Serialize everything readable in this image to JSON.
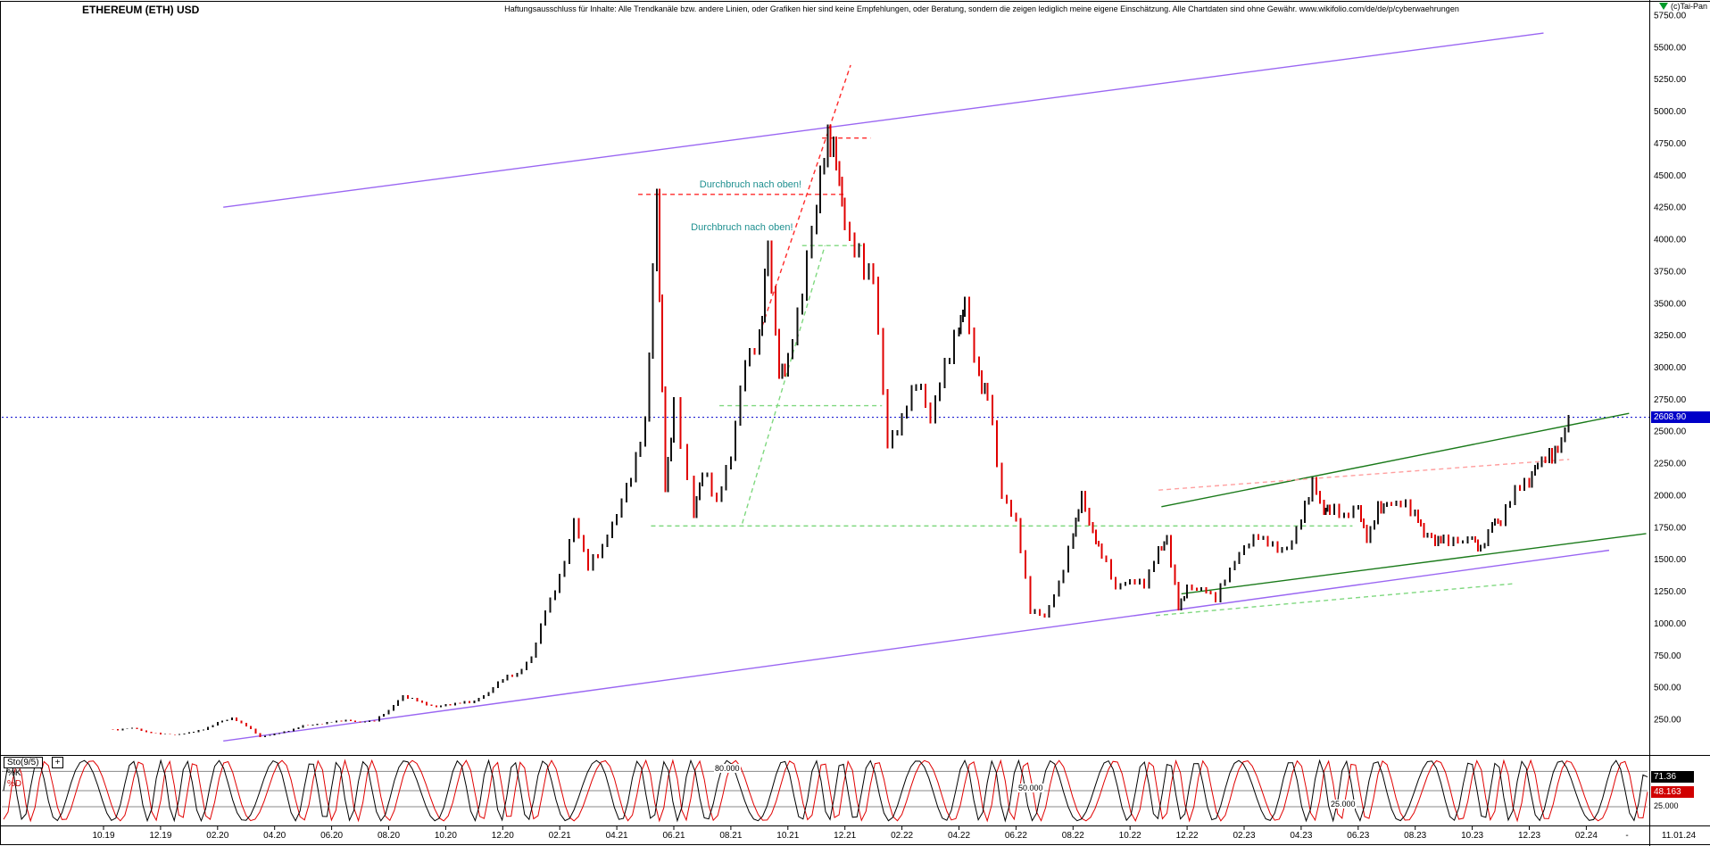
{
  "header": {
    "title": "ETHEREUM (ETH) USD",
    "disclaimer": "Haftungsausschluss für Inhalte: Alle Trendkanäle bzw. andere Linien, oder Grafiken hier sind keine Empfehlungen, oder Beratung, sondern die zeigen lediglich meine eigene Einschätzung. Alle Chartdaten sind ohne Gewähr.  www.wikifolio.com/de/de/p/cyberwaehrungen",
    "copyright": "(c)Tai-Pan"
  },
  "price_axis": {
    "last_price_label": "2608.90"
  },
  "indicator": {
    "name": "Sto(9/5)",
    "expand_button": "+",
    "k_label": "%K",
    "d_label": "%D",
    "k_value": "71.36",
    "d_value": "48.163",
    "right_level": "25.000",
    "levels": [
      "80.000",
      "50.000",
      "25.000"
    ]
  },
  "colors": {
    "up": "#111111",
    "down": "#e00000",
    "purple": "#9a66f2",
    "green_solid": "#1a7a1a",
    "green_dashed": "#7fd87f",
    "red_dashed": "#ff2a2a",
    "salmon_dashed": "#ff9f9f",
    "blue": "#0000cc",
    "teal": "#1f9090",
    "level_line": "#888888"
  },
  "chart_data": [
    {
      "type": "candlestick",
      "title": "ETHEREUM (ETH) USD",
      "x_axis": {
        "unit": "months since 2019-10",
        "tick_step_months": 2,
        "tick_labels": [
          "10.19",
          "12.19",
          "02.20",
          "04.20",
          "06.20",
          "08.20",
          "10.20",
          "12.20",
          "02.21",
          "04.21",
          "06.21",
          "08.21",
          "10.21",
          "12.21",
          "02.22",
          "04.22",
          "06.22",
          "08.22",
          "10.22",
          "12.22",
          "02.23",
          "04.23",
          "06.23",
          "08.23",
          "10.23",
          "12.23",
          "02.24"
        ],
        "end_dash": "-",
        "last_session": "11.01.24"
      },
      "y_axis": {
        "ticks": [
          "5750.00",
          "5500.00",
          "5250.00",
          "5000.00",
          "4750.00",
          "4500.00",
          "4250.00",
          "4000.00",
          "3750.00",
          "3500.00",
          "3250.00",
          "3000.00",
          "2750.00",
          "2500.00",
          "2250.00",
          "2000.00",
          "1750.00",
          "1500.00",
          "1250.00",
          "1000.00",
          "750.00",
          "500.00",
          "250.00"
        ],
        "min": 0,
        "max": 5750
      },
      "last_price": 2608.9,
      "series": [
        {
          "name": "ETH/USD close",
          "points": [
            [
              0,
              180
            ],
            [
              0.5,
              165
            ],
            [
              1,
              185
            ],
            [
              1.5,
              150
            ],
            [
              2,
              135
            ],
            [
              2.5,
              128
            ],
            [
              3,
              145
            ],
            [
              3.5,
              170
            ],
            [
              4,
              225
            ],
            [
              4.5,
              260
            ],
            [
              5,
              200
            ],
            [
              5.5,
              112
            ],
            [
              6,
              135
            ],
            [
              6.5,
              160
            ],
            [
              7,
              200
            ],
            [
              7.5,
              210
            ],
            [
              8,
              230
            ],
            [
              8.5,
              245
            ],
            [
              9,
              228
            ],
            [
              9.5,
              240
            ],
            [
              10,
              320
            ],
            [
              10.5,
              430
            ],
            [
              11,
              395
            ],
            [
              11.5,
              350
            ],
            [
              12,
              360
            ],
            [
              12.5,
              380
            ],
            [
              13,
              390
            ],
            [
              13.5,
              460
            ],
            [
              14,
              570
            ],
            [
              14.5,
              600
            ],
            [
              15,
              730
            ],
            [
              15.5,
              1100
            ],
            [
              16,
              1350
            ],
            [
              16.5,
              1800
            ],
            [
              17,
              1450
            ],
            [
              17.5,
              1600
            ],
            [
              18,
              1850
            ],
            [
              18.5,
              2150
            ],
            [
              19,
              2550
            ],
            [
              19.4,
              4330
            ],
            [
              19.7,
              2050
            ],
            [
              20,
              2700
            ],
            [
              20.7,
              1850
            ],
            [
              21,
              2200
            ],
            [
              21.5,
              1950
            ],
            [
              22,
              2300
            ],
            [
              22.5,
              3050
            ],
            [
              23,
              3200
            ],
            [
              23.3,
              3950
            ],
            [
              23.7,
              2950
            ],
            [
              24,
              3050
            ],
            [
              24.5,
              3600
            ],
            [
              25,
              4300
            ],
            [
              25.4,
              4800
            ],
            [
              25.7,
              4600
            ],
            [
              26,
              4100
            ],
            [
              26.5,
              3850
            ],
            [
              27,
              3700
            ],
            [
              27.5,
              2400
            ],
            [
              28,
              2600
            ],
            [
              28.5,
              2900
            ],
            [
              29,
              2600
            ],
            [
              29.5,
              3000
            ],
            [
              30,
              3300
            ],
            [
              30.2,
              3500
            ],
            [
              30.7,
              2900
            ],
            [
              31,
              2800
            ],
            [
              31.5,
              2000
            ],
            [
              32,
              1800
            ],
            [
              32.5,
              1100
            ],
            [
              33,
              1050
            ],
            [
              33.5,
              1300
            ],
            [
              34,
              1700
            ],
            [
              34.3,
              2000
            ],
            [
              34.7,
              1700
            ],
            [
              35,
              1550
            ],
            [
              35.5,
              1280
            ],
            [
              36,
              1330
            ],
            [
              36.5,
              1300
            ],
            [
              37,
              1570
            ],
            [
              37.3,
              1650
            ],
            [
              37.7,
              1120
            ],
            [
              38,
              1280
            ],
            [
              38.5,
              1270
            ],
            [
              39,
              1200
            ],
            [
              39.5,
              1420
            ],
            [
              40,
              1590
            ],
            [
              40.5,
              1680
            ],
            [
              41,
              1600
            ],
            [
              41.5,
              1570
            ],
            [
              42,
              1820
            ],
            [
              42.4,
              2110
            ],
            [
              42.8,
              1870
            ],
            [
              43,
              1900
            ],
            [
              43.5,
              1830
            ],
            [
              44,
              1900
            ],
            [
              44.3,
              1650
            ],
            [
              44.7,
              1900
            ],
            [
              45,
              1930
            ],
            [
              45.5,
              1950
            ],
            [
              46,
              1860
            ],
            [
              46.3,
              1700
            ],
            [
              46.7,
              1640
            ],
            [
              47,
              1650
            ],
            [
              47.5,
              1630
            ],
            [
              48,
              1670
            ],
            [
              48.3,
              1570
            ],
            [
              48.7,
              1790
            ],
            [
              49,
              1800
            ],
            [
              49.5,
              2050
            ],
            [
              50,
              2100
            ],
            [
              50.3,
              2250
            ],
            [
              50.7,
              2300
            ],
            [
              51,
              2350
            ],
            [
              51.37,
              2608.9
            ]
          ]
        }
      ],
      "trendlines": [
        {
          "name": "upper-purple-channel",
          "color": "purple",
          "style": "solid",
          "points": [
            [
              4.2,
              4250
            ],
            [
              50.5,
              5610
            ]
          ]
        },
        {
          "name": "lower-purple-channel",
          "color": "purple",
          "style": "solid",
          "points": [
            [
              4.2,
              80
            ],
            [
              52.8,
              1570
            ]
          ]
        },
        {
          "name": "upper-green-channel",
          "color": "green_solid",
          "style": "solid",
          "points": [
            [
              37.1,
              1910
            ],
            [
              53.5,
              2640
            ]
          ]
        },
        {
          "name": "lower-green-channel",
          "color": "green_solid",
          "style": "solid",
          "points": [
            [
              37.8,
              1230
            ],
            [
              54.1,
              1700
            ]
          ]
        },
        {
          "name": "support-1750",
          "color": "green_dashed",
          "style": "dashed",
          "points": [
            [
              19.2,
              1760
            ],
            [
              43.8,
              1760
            ]
          ]
        },
        {
          "name": "resistance-2700",
          "color": "green_dashed",
          "style": "dashed",
          "points": [
            [
              21.6,
              2700
            ],
            [
              27.3,
              2700
            ]
          ]
        },
        {
          "name": "resistance-3950",
          "color": "green_dashed",
          "style": "dashed",
          "points": [
            [
              24.5,
              3950
            ],
            [
              26.6,
              3950
            ]
          ]
        },
        {
          "name": "breakout-diagonal",
          "color": "green_dashed",
          "style": "dashed",
          "points": [
            [
              22.4,
              1780
            ],
            [
              25.3,
              3950
            ]
          ]
        },
        {
          "name": "rising-support",
          "color": "green_dashed",
          "style": "dashed",
          "points": [
            [
              36.9,
              1060
            ],
            [
              49.5,
              1310
            ]
          ]
        },
        {
          "name": "resistance-4350",
          "color": "red_dashed",
          "style": "dashed",
          "points": [
            [
              18.75,
              4350
            ],
            [
              26.0,
              4350
            ]
          ]
        },
        {
          "name": "steep-trend",
          "color": "red_dashed",
          "style": "dashed",
          "points": [
            [
              23.1,
              3320
            ],
            [
              26.2,
              5360
            ]
          ]
        },
        {
          "name": "top-4790",
          "color": "red_dashed",
          "style": "dashed",
          "points": [
            [
              25.2,
              4790
            ],
            [
              26.9,
              4790
            ]
          ]
        },
        {
          "name": "rising-resistance",
          "color": "salmon_dashed",
          "style": "dashed",
          "points": [
            [
              37.0,
              2040
            ],
            [
              51.4,
              2280
            ]
          ]
        }
      ],
      "annotations": [
        {
          "text": "Durchbruch nach oben!",
          "month": 20.9,
          "price": 4405
        },
        {
          "text": "Durchbruch nach oben!",
          "month": 20.6,
          "price": 4070
        }
      ]
    },
    {
      "type": "line",
      "name": "Sto(9/5)",
      "range": [
        0,
        100
      ],
      "levels": [
        80,
        50,
        25
      ],
      "series": [
        {
          "name": "%K",
          "current": 71.36
        },
        {
          "name": "%D",
          "current": 48.163
        }
      ]
    }
  ]
}
